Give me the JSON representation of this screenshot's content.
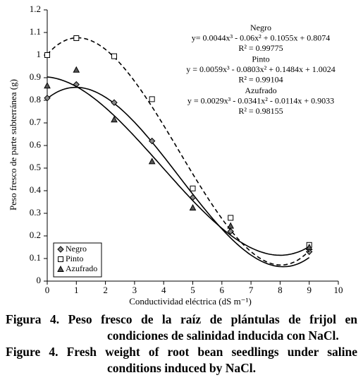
{
  "chart_data": {
    "type": "scatter",
    "ylabel": "Peso fresco de parte subterránea (g)",
    "xlabel": "Conductividad eléctrica (dS m⁻¹)",
    "xlim": [
      0,
      10
    ],
    "xticks": [
      0,
      1,
      2,
      3,
      4,
      5,
      6,
      7,
      8,
      9,
      10
    ],
    "ylim": [
      0,
      1.2
    ],
    "yticks": [
      0,
      0.1,
      0.2,
      0.3,
      0.4,
      0.5,
      0.6,
      0.7,
      0.8,
      0.9,
      1,
      1.1,
      1.2
    ],
    "series": [
      {
        "name": "Negro",
        "marker": "diamond",
        "line": "solid",
        "color": "#000000",
        "x": [
          0,
          1,
          2.3,
          3.6,
          5,
          6.3,
          9
        ],
        "values": [
          0.81,
          0.87,
          0.79,
          0.62,
          0.37,
          0.22,
          0.13
        ],
        "equation": "y= 0.0044x³ - 0.06x² + 0.1055x + 0.8074",
        "r2": "R² = 0.99775"
      },
      {
        "name": "Pinto",
        "marker": "square",
        "line": "dashed",
        "color": "#000000",
        "x": [
          0,
          1,
          2.3,
          3.6,
          5,
          6.3,
          9
        ],
        "values": [
          1.0,
          1.075,
          0.995,
          0.805,
          0.41,
          0.28,
          0.16
        ],
        "equation": "y = 0.0059x³ - 0.0803x² + 0.1484x + 1.0024",
        "r2": "R² = 0.99104"
      },
      {
        "name": "Azufrado",
        "marker": "triangle",
        "line": "solid",
        "color": "#000000",
        "x": [
          0,
          1,
          2.3,
          3.6,
          5,
          6.3,
          9
        ],
        "values": [
          0.865,
          0.935,
          0.715,
          0.53,
          0.325,
          0.245,
          0.15
        ],
        "equation": "y = 0.0029x³ - 0.0341x² - 0.0114x + 0.9033",
        "r2": "R² = 0.98155"
      }
    ]
  },
  "caption": [
    "Figura 4. Peso fresco de la raíz de plántulas de frijol en condiciones de salinidad inducida con NaCl.",
    "Figure 4. Fresh weight of root bean seedlings under saline conditions induced by NaCl."
  ]
}
